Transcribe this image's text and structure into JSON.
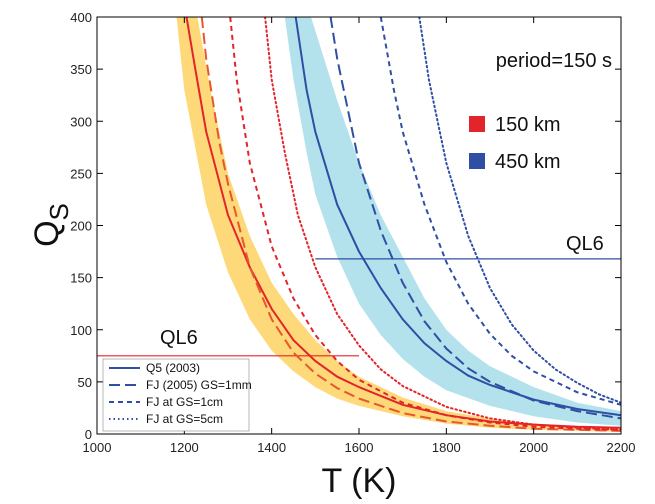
{
  "chart_data": {
    "type": "line",
    "title": "",
    "xlabel": "T (K)",
    "ylabel": "Q",
    "ylabel_subscript": "S",
    "xlim": [
      1000,
      2200
    ],
    "ylim": [
      0,
      400
    ],
    "x_ticks": [
      1000,
      1200,
      1400,
      1600,
      1800,
      2000,
      2200
    ],
    "y_ticks": [
      0,
      50,
      100,
      150,
      200,
      250,
      300,
      350,
      400
    ],
    "grid": false,
    "annotations": {
      "period": "period=150 s",
      "depth_legend": [
        {
          "label": "150 km",
          "color": "#e3242b"
        },
        {
          "label": "450 km",
          "color": "#2e4fa3"
        }
      ],
      "ql6": [
        {
          "label": "QL6",
          "value": 75,
          "x_start": 1000,
          "x_end": 1600,
          "color": "#e3242b"
        },
        {
          "label": "QL6",
          "value": 168,
          "x_start": 1500,
          "x_end": 2200,
          "color": "#2e4fa3"
        }
      ]
    },
    "legend": {
      "placement": "bottom-left",
      "entries": [
        {
          "label": "Q5 (2003)",
          "style": "solid"
        },
        {
          "label": "FJ (2005) GS=1mm",
          "style": "longdash"
        },
        {
          "label": "FJ at GS=1cm",
          "style": "dash"
        },
        {
          "label": "FJ at GS=5cm",
          "style": "dot"
        }
      ]
    },
    "colors": {
      "red": "#e3242b",
      "blue": "#2e4fa3",
      "orange_band": "#fdd97a",
      "blue_band": "#b3e1ec",
      "orange_dash": "#e8572a"
    },
    "bands": [
      {
        "name": "150 km range",
        "color": "#fdd97a",
        "upper": [
          [
            1230,
            400
          ],
          [
            1260,
            330
          ],
          [
            1300,
            250
          ],
          [
            1350,
            190
          ],
          [
            1400,
            145
          ],
          [
            1450,
            115
          ],
          [
            1500,
            90
          ],
          [
            1550,
            70
          ],
          [
            1600,
            55
          ],
          [
            1700,
            35
          ],
          [
            1800,
            22
          ],
          [
            1900,
            15
          ],
          [
            2000,
            10
          ],
          [
            2100,
            7
          ],
          [
            2200,
            5
          ]
        ],
        "lower": [
          [
            1182,
            400
          ],
          [
            1200,
            330
          ],
          [
            1250,
            220
          ],
          [
            1300,
            155
          ],
          [
            1350,
            110
          ],
          [
            1400,
            80
          ],
          [
            1450,
            60
          ],
          [
            1500,
            45
          ],
          [
            1550,
            34
          ],
          [
            1600,
            27
          ],
          [
            1700,
            17
          ],
          [
            1800,
            10
          ],
          [
            1900,
            6
          ],
          [
            2000,
            4
          ],
          [
            2100,
            3
          ],
          [
            2200,
            2
          ]
        ]
      },
      {
        "name": "450 km range",
        "color": "#b3e1ec",
        "upper": [
          [
            1490,
            400
          ],
          [
            1550,
            320
          ],
          [
            1600,
            260
          ],
          [
            1650,
            210
          ],
          [
            1700,
            170
          ],
          [
            1750,
            130
          ],
          [
            1800,
            100
          ],
          [
            1850,
            80
          ],
          [
            1900,
            65
          ],
          [
            2000,
            45
          ],
          [
            2100,
            30
          ],
          [
            2200,
            22
          ]
        ],
        "lower": [
          [
            1430,
            400
          ],
          [
            1450,
            340
          ],
          [
            1480,
            270
          ],
          [
            1500,
            230
          ],
          [
            1550,
            170
          ],
          [
            1600,
            125
          ],
          [
            1650,
            95
          ],
          [
            1700,
            72
          ],
          [
            1750,
            55
          ],
          [
            1800,
            42
          ],
          [
            1900,
            27
          ],
          [
            2000,
            17
          ],
          [
            2100,
            11
          ],
          [
            2200,
            8
          ]
        ]
      }
    ],
    "series": [
      {
        "color": "#e3242b",
        "style": "solid",
        "points": [
          [
            1205,
            400
          ],
          [
            1225,
            350
          ],
          [
            1250,
            290
          ],
          [
            1300,
            210
          ],
          [
            1350,
            160
          ],
          [
            1400,
            120
          ],
          [
            1450,
            90
          ],
          [
            1500,
            70
          ],
          [
            1550,
            55
          ],
          [
            1600,
            45
          ],
          [
            1700,
            28
          ],
          [
            1800,
            18
          ],
          [
            1900,
            12
          ],
          [
            2000,
            9
          ],
          [
            2100,
            7
          ],
          [
            2200,
            6
          ]
        ]
      },
      {
        "color": "#e8572a",
        "style": "longdash",
        "points": [
          [
            1240,
            400
          ],
          [
            1250,
            360
          ],
          [
            1280,
            280
          ],
          [
            1300,
            240
          ],
          [
            1350,
            160
          ],
          [
            1400,
            110
          ],
          [
            1450,
            78
          ],
          [
            1500,
            58
          ],
          [
            1550,
            44
          ],
          [
            1600,
            34
          ],
          [
            1700,
            20
          ],
          [
            1800,
            12
          ],
          [
            1900,
            8
          ],
          [
            2000,
            5
          ],
          [
            2100,
            4
          ],
          [
            2200,
            3
          ]
        ]
      },
      {
        "color": "#e3242b",
        "style": "dash",
        "points": [
          [
            1305,
            400
          ],
          [
            1320,
            340
          ],
          [
            1350,
            260
          ],
          [
            1400,
            180
          ],
          [
            1450,
            130
          ],
          [
            1500,
            95
          ],
          [
            1550,
            70
          ],
          [
            1600,
            52
          ],
          [
            1700,
            30
          ],
          [
            1800,
            18
          ],
          [
            1900,
            11
          ],
          [
            2000,
            7
          ],
          [
            2100,
            5
          ],
          [
            2200,
            4
          ]
        ]
      },
      {
        "color": "#e3242b",
        "style": "dot",
        "points": [
          [
            1385,
            400
          ],
          [
            1400,
            340
          ],
          [
            1430,
            270
          ],
          [
            1460,
            210
          ],
          [
            1500,
            160
          ],
          [
            1550,
            115
          ],
          [
            1600,
            85
          ],
          [
            1650,
            62
          ],
          [
            1700,
            46
          ],
          [
            1800,
            26
          ],
          [
            1900,
            15
          ],
          [
            2000,
            9
          ],
          [
            2100,
            6
          ],
          [
            2200,
            4
          ]
        ]
      },
      {
        "color": "#2e4fa3",
        "style": "solid",
        "points": [
          [
            1455,
            400
          ],
          [
            1480,
            330
          ],
          [
            1500,
            290
          ],
          [
            1550,
            220
          ],
          [
            1600,
            175
          ],
          [
            1650,
            140
          ],
          [
            1700,
            110
          ],
          [
            1750,
            87
          ],
          [
            1800,
            70
          ],
          [
            1850,
            56
          ],
          [
            1900,
            47
          ],
          [
            2000,
            33
          ],
          [
            2100,
            24
          ],
          [
            2200,
            18
          ]
        ]
      },
      {
        "color": "#2e4fa3",
        "style": "longdash",
        "points": [
          [
            1535,
            400
          ],
          [
            1550,
            360
          ],
          [
            1600,
            260
          ],
          [
            1650,
            195
          ],
          [
            1700,
            145
          ],
          [
            1750,
            108
          ],
          [
            1800,
            82
          ],
          [
            1850,
            63
          ],
          [
            1900,
            50
          ],
          [
            2000,
            32
          ],
          [
            2100,
            22
          ],
          [
            2200,
            15
          ]
        ]
      },
      {
        "color": "#2e4fa3",
        "style": "dash",
        "points": [
          [
            1650,
            400
          ],
          [
            1680,
            330
          ],
          [
            1700,
            290
          ],
          [
            1750,
            220
          ],
          [
            1800,
            165
          ],
          [
            1850,
            125
          ],
          [
            1900,
            96
          ],
          [
            1950,
            75
          ],
          [
            2000,
            60
          ],
          [
            2100,
            40
          ],
          [
            2200,
            28
          ]
        ]
      },
      {
        "color": "#2e4fa3",
        "style": "dot",
        "points": [
          [
            1738,
            400
          ],
          [
            1760,
            340
          ],
          [
            1800,
            260
          ],
          [
            1850,
            190
          ],
          [
            1900,
            140
          ],
          [
            1950,
            105
          ],
          [
            2000,
            80
          ],
          [
            2050,
            62
          ],
          [
            2100,
            49
          ],
          [
            2150,
            38
          ],
          [
            2200,
            30
          ]
        ]
      }
    ]
  }
}
